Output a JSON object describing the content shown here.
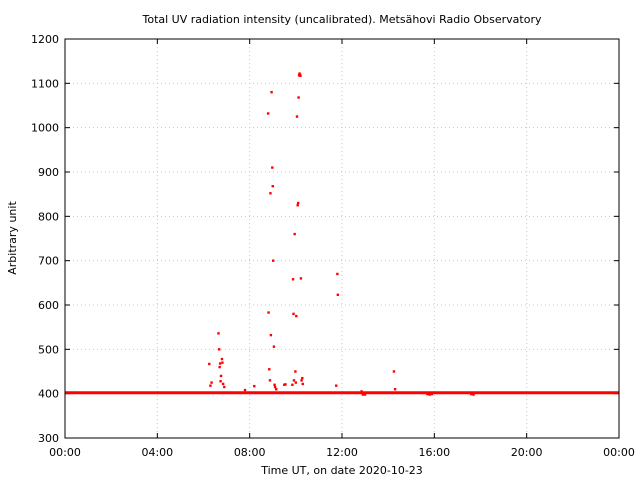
{
  "chart_data": {
    "type": "scatter",
    "title": "Total UV radiation intensity (uncalibrated). Metsähovi Radio Observatory",
    "xlabel": "Time UT, on date 2020-10-23",
    "ylabel": "Arbitrary unit",
    "xlim": [
      0,
      24
    ],
    "ylim": [
      300,
      1200
    ],
    "xticks": [
      {
        "value": 0,
        "label": "00:00"
      },
      {
        "value": 4,
        "label": "04:00"
      },
      {
        "value": 8,
        "label": "08:00"
      },
      {
        "value": 12,
        "label": "12:00"
      },
      {
        "value": 16,
        "label": "16:00"
      },
      {
        "value": 20,
        "label": "20:00"
      },
      {
        "value": 24,
        "label": "00:00"
      }
    ],
    "yticks": [
      300,
      400,
      500,
      600,
      700,
      800,
      900,
      1000,
      1100,
      1200
    ],
    "grid": true,
    "legend": "none",
    "series": [
      {
        "color": "#ff0000",
        "baseline": {
          "value": 402,
          "x_start": 0,
          "x_end": 24
        },
        "points": [
          {
            "x": 6.25,
            "y": 467
          },
          {
            "x": 6.3,
            "y": 418
          },
          {
            "x": 6.35,
            "y": 425
          },
          {
            "x": 6.65,
            "y": 536
          },
          {
            "x": 6.68,
            "y": 500
          },
          {
            "x": 6.7,
            "y": 460
          },
          {
            "x": 6.72,
            "y": 468
          },
          {
            "x": 6.74,
            "y": 428
          },
          {
            "x": 6.76,
            "y": 440
          },
          {
            "x": 6.8,
            "y": 478
          },
          {
            "x": 6.82,
            "y": 470
          },
          {
            "x": 6.85,
            "y": 422
          },
          {
            "x": 6.9,
            "y": 415
          },
          {
            "x": 7.8,
            "y": 408
          },
          {
            "x": 8.2,
            "y": 417
          },
          {
            "x": 8.8,
            "y": 1032
          },
          {
            "x": 8.82,
            "y": 583
          },
          {
            "x": 8.85,
            "y": 455
          },
          {
            "x": 8.88,
            "y": 430
          },
          {
            "x": 8.9,
            "y": 852
          },
          {
            "x": 8.92,
            "y": 532
          },
          {
            "x": 8.95,
            "y": 1080
          },
          {
            "x": 8.98,
            "y": 910
          },
          {
            "x": 9.0,
            "y": 868
          },
          {
            "x": 9.02,
            "y": 700
          },
          {
            "x": 9.05,
            "y": 506
          },
          {
            "x": 9.08,
            "y": 420
          },
          {
            "x": 9.1,
            "y": 415
          },
          {
            "x": 9.15,
            "y": 410
          },
          {
            "x": 9.5,
            "y": 420
          },
          {
            "x": 9.55,
            "y": 421
          },
          {
            "x": 9.85,
            "y": 420
          },
          {
            "x": 9.88,
            "y": 658
          },
          {
            "x": 9.9,
            "y": 580
          },
          {
            "x": 9.92,
            "y": 430
          },
          {
            "x": 9.95,
            "y": 760
          },
          {
            "x": 9.98,
            "y": 450
          },
          {
            "x": 10.0,
            "y": 425
          },
          {
            "x": 10.02,
            "y": 575
          },
          {
            "x": 10.05,
            "y": 1025
          },
          {
            "x": 10.08,
            "y": 825
          },
          {
            "x": 10.1,
            "y": 830
          },
          {
            "x": 10.12,
            "y": 1068
          },
          {
            "x": 10.14,
            "y": 1118
          },
          {
            "x": 10.16,
            "y": 1122
          },
          {
            "x": 10.18,
            "y": 1120
          },
          {
            "x": 10.2,
            "y": 1117
          },
          {
            "x": 10.22,
            "y": 660
          },
          {
            "x": 10.25,
            "y": 430
          },
          {
            "x": 10.28,
            "y": 435
          },
          {
            "x": 10.3,
            "y": 422
          },
          {
            "x": 11.75,
            "y": 418
          },
          {
            "x": 11.8,
            "y": 670
          },
          {
            "x": 11.82,
            "y": 623
          },
          {
            "x": 12.85,
            "y": 405
          },
          {
            "x": 12.9,
            "y": 398
          },
          {
            "x": 13.0,
            "y": 398
          },
          {
            "x": 14.25,
            "y": 450
          },
          {
            "x": 14.3,
            "y": 410
          },
          {
            "x": 15.7,
            "y": 399
          },
          {
            "x": 15.8,
            "y": 398
          },
          {
            "x": 15.9,
            "y": 399
          },
          {
            "x": 17.6,
            "y": 399
          },
          {
            "x": 17.7,
            "y": 398
          }
        ]
      }
    ]
  }
}
